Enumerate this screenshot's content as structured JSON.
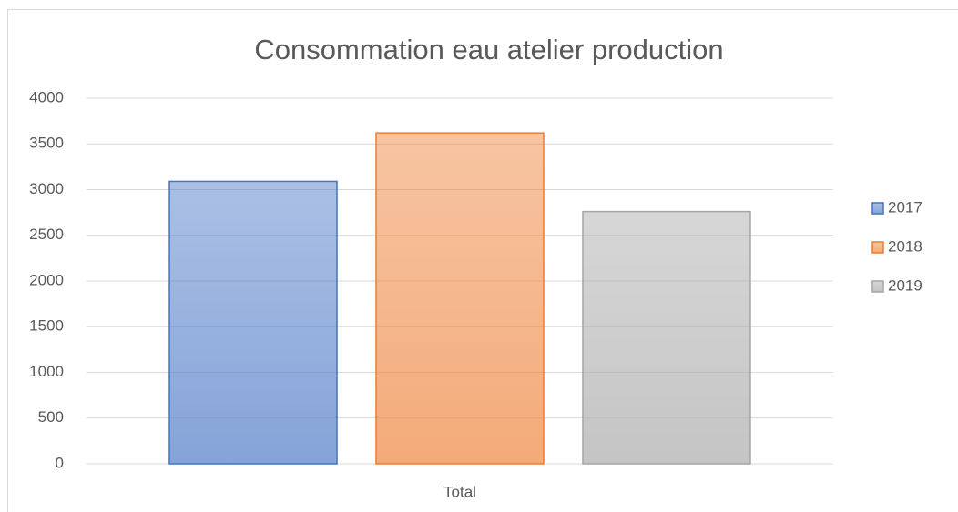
{
  "chart_data": {
    "type": "bar",
    "title": "Consommation eau atelier production",
    "categories": [
      "Total"
    ],
    "series": [
      {
        "name": "2017",
        "color": "#4472c4",
        "values": [
          3090
        ]
      },
      {
        "name": "2018",
        "color": "#ed7d31",
        "values": [
          3620
        ]
      },
      {
        "name": "2019",
        "color": "#a5a5a5",
        "values": [
          2760
        ]
      }
    ],
    "ylim": [
      0,
      4000
    ],
    "yticks": [
      0,
      500,
      1000,
      1500,
      2000,
      2500,
      3000,
      3500,
      4000
    ],
    "grid": true,
    "legend": "right"
  }
}
